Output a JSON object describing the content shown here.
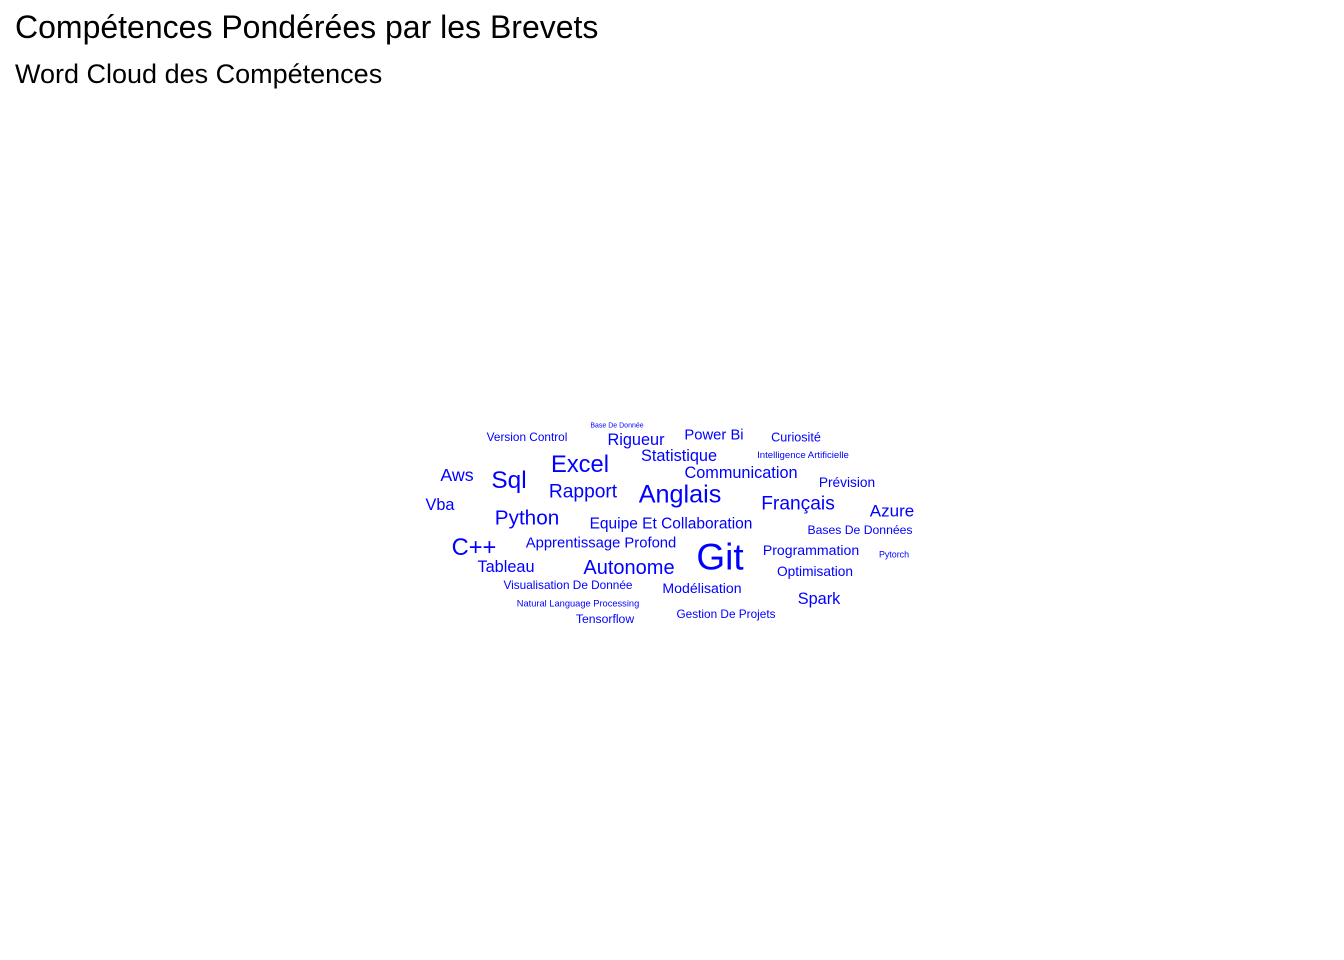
{
  "page": {
    "title": "Compétences Pondérées par les Brevets"
  },
  "chart_data": {
    "type": "wordcloud",
    "title": "Word Cloud des Compétences",
    "color": "#0000ff",
    "words": [
      {
        "text": "Git",
        "weight": 100
      },
      {
        "text": "Anglais",
        "weight": 68
      },
      {
        "text": "Sql",
        "weight": 66
      },
      {
        "text": "Excel",
        "weight": 64
      },
      {
        "text": "C++",
        "weight": 64
      },
      {
        "text": "Python",
        "weight": 56
      },
      {
        "text": "Autonome",
        "weight": 54
      },
      {
        "text": "Rapport",
        "weight": 52
      },
      {
        "text": "Français",
        "weight": 52
      },
      {
        "text": "Aws",
        "weight": 48
      },
      {
        "text": "Azure",
        "weight": 46
      },
      {
        "text": "Statistique",
        "weight": 44
      },
      {
        "text": "Communication",
        "weight": 44
      },
      {
        "text": "Vba",
        "weight": 44
      },
      {
        "text": "Spark",
        "weight": 44
      },
      {
        "text": "Rigueur",
        "weight": 44
      },
      {
        "text": "Tableau",
        "weight": 44
      },
      {
        "text": "Equipe Et Collaboration",
        "weight": 42
      },
      {
        "text": "Power Bi",
        "weight": 40
      },
      {
        "text": "Apprentissage Profond",
        "weight": 40
      },
      {
        "text": "Modélisation",
        "weight": 38
      },
      {
        "text": "Programmation",
        "weight": 38
      },
      {
        "text": "Prévision",
        "weight": 37
      },
      {
        "text": "Optimisation",
        "weight": 37
      },
      {
        "text": "Curiosité",
        "weight": 34
      },
      {
        "text": "Bases De Données",
        "weight": 33
      },
      {
        "text": "Tensorflow",
        "weight": 33
      },
      {
        "text": "Version Control",
        "weight": 32
      },
      {
        "text": "Visualisation De Donnée",
        "weight": 32
      },
      {
        "text": "Gestion De Projets",
        "weight": 32
      },
      {
        "text": "Intelligence Artificielle",
        "weight": 26
      },
      {
        "text": "Natural Language Processing",
        "weight": 25
      },
      {
        "text": "Pytorch",
        "weight": 24
      },
      {
        "text": "Base De Donnée",
        "weight": 19
      }
    ]
  }
}
